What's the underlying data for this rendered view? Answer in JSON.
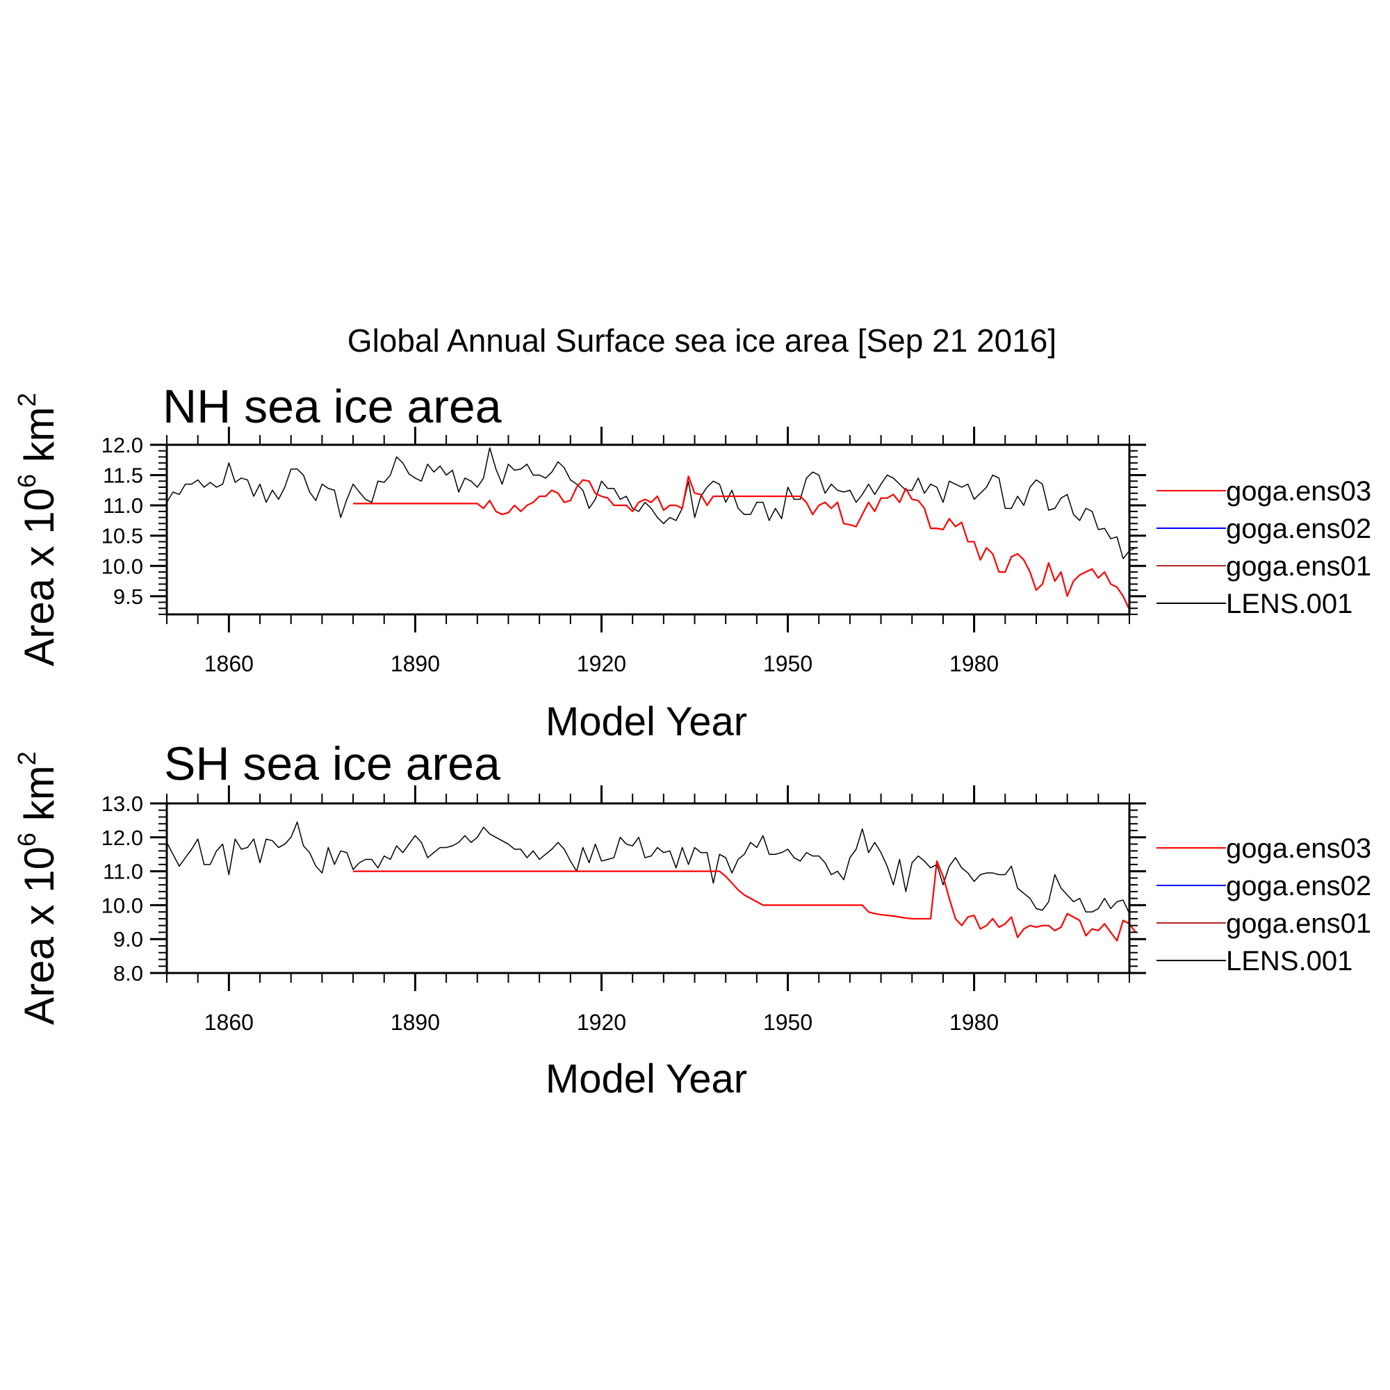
{
  "figure_title": "Global Annual Surface sea ice area [Sep 21 2016]",
  "chart_data": [
    {
      "type": "line",
      "title": "NH sea ice area",
      "xlabel": "Model Year",
      "ylabel_text": "Area x 10",
      "ylabel_exp1": "6",
      "ylabel_unit": " km",
      "ylabel_exp2": "2",
      "xlim": [
        1850,
        2005
      ],
      "ylim": [
        9.2,
        12.0
      ],
      "xticks": [
        1860,
        1890,
        1920,
        1950,
        1980
      ],
      "xtick_labels": [
        "1860",
        "1890",
        "1920",
        "1950",
        "1980"
      ],
      "yticks": [
        9.5,
        10.0,
        10.5,
        11.0,
        11.5,
        12.0
      ],
      "ytick_labels": [
        "9.5",
        "10.0",
        "10.5",
        "11.0",
        "11.5",
        "12.0"
      ],
      "legend_position": "right",
      "series": [
        {
          "name": "goga.ens03",
          "color": "#ff0000",
          "x": [
            1880,
            2005
          ],
          "values": [
            11.03,
            9.3
          ],
          "legend_only": true
        },
        {
          "name": "goga.ens02",
          "color": "#0000ff",
          "x": [],
          "values": [],
          "legend_only": true
        },
        {
          "name": "goga.ens01",
          "color": "#b22222",
          "x": [],
          "values": [],
          "legend_only": true
        },
        {
          "name": "LENS.001",
          "color": "#000000",
          "x": [],
          "values": [],
          "legend_only": true
        }
      ],
      "lines": [
        {
          "name": "LENS.001",
          "color": "#000000",
          "width": 1.5,
          "x0": 1850,
          "values": [
            11.05,
            11.22,
            11.18,
            11.35,
            11.35,
            11.42,
            11.3,
            11.38,
            11.3,
            11.35,
            11.7,
            11.38,
            11.45,
            11.42,
            11.15,
            11.35,
            11.05,
            11.25,
            11.1,
            11.3,
            11.6,
            11.6,
            11.5,
            11.22,
            11.08,
            11.35,
            11.28,
            11.25,
            10.8,
            11.1,
            11.35,
            11.22,
            11.1,
            11.05,
            11.4,
            11.38,
            11.5,
            11.8,
            11.7,
            11.52,
            11.45,
            11.4,
            11.68,
            11.55,
            11.65,
            11.5,
            11.58,
            11.22,
            11.45,
            11.4,
            11.3,
            11.45,
            11.95,
            11.6,
            11.35,
            11.68,
            11.58,
            11.6,
            11.68,
            11.5,
            11.5,
            11.45,
            11.55,
            11.72,
            11.62,
            11.42,
            11.35,
            11.25,
            10.95,
            11.1,
            11.4,
            11.28,
            11.28,
            11.1,
            11.15,
            10.95,
            10.9,
            11.05,
            10.95,
            10.8,
            10.7,
            10.8,
            10.75,
            10.95,
            11.4,
            10.8,
            11.15,
            11.3,
            11.4,
            11.35,
            11.05,
            11.25,
            10.95,
            10.85,
            10.85,
            11.05,
            11.05,
            10.75,
            10.95,
            10.78,
            11.3,
            11.1,
            11.1,
            11.45,
            11.55,
            11.5,
            11.2,
            11.35,
            11.25,
            11.22,
            11.25,
            11.05,
            11.18,
            11.35,
            11.18,
            11.35,
            11.5,
            11.45,
            11.35,
            11.25,
            11.25,
            11.45,
            11.2,
            11.35,
            11.3,
            11.05,
            11.4,
            11.35,
            11.3,
            11.35,
            11.1,
            11.2,
            11.3,
            11.5,
            11.45,
            10.95,
            10.95,
            11.15,
            11.0,
            11.3,
            11.42,
            11.35,
            10.92,
            10.95,
            11.12,
            11.18,
            10.85,
            10.75,
            10.95,
            10.9,
            10.6,
            10.62,
            10.45,
            10.48,
            10.12,
            10.25,
            10.3
          ]
        },
        {
          "name": "goga.ens03",
          "color": "#ff0000",
          "width": 2.2,
          "x0": 1880,
          "values": [
            11.03,
            11.03,
            11.03,
            11.03,
            11.03,
            11.03,
            11.03,
            11.03,
            11.03,
            11.03,
            11.03,
            11.03,
            11.03,
            11.03,
            11.03,
            11.03,
            11.03,
            11.03,
            11.03,
            11.03,
            11.03,
            10.95,
            11.08,
            10.9,
            10.85,
            10.88,
            11.0,
            10.9,
            11.0,
            11.05,
            11.15,
            11.15,
            11.25,
            11.2,
            11.05,
            11.08,
            11.3,
            11.42,
            11.4,
            11.2,
            11.15,
            11.12,
            11.0,
            11.0,
            11.0,
            10.9,
            11.05,
            11.1,
            11.05,
            11.15,
            10.92,
            11.0,
            11.0,
            10.95,
            11.48,
            11.2,
            11.18,
            11.0,
            11.15,
            11.15,
            11.15,
            11.15,
            11.15,
            11.15,
            11.15,
            11.15,
            11.15,
            11.15,
            11.15,
            11.15,
            11.15,
            11.15,
            11.15,
            11.05,
            10.85,
            11.0,
            11.05,
            10.95,
            11.05,
            10.7,
            10.68,
            10.65,
            10.85,
            11.05,
            10.9,
            11.12,
            11.12,
            11.18,
            11.05,
            11.28,
            11.1,
            11.08,
            10.95,
            10.62,
            10.62,
            10.6,
            10.78,
            10.65,
            10.72,
            10.4,
            10.4,
            10.1,
            10.3,
            10.2,
            9.9,
            9.9,
            10.15,
            10.2,
            10.1,
            9.9,
            9.6,
            9.7,
            10.05,
            9.75,
            9.9,
            9.5,
            9.75,
            9.85,
            9.9,
            9.95,
            9.8,
            9.9,
            9.7,
            9.65,
            9.5,
            9.28
          ]
        }
      ]
    },
    {
      "type": "line",
      "title": "SH sea ice area",
      "xlabel": "Model Year",
      "ylabel_text": "Area x 10",
      "ylabel_exp1": "6",
      "ylabel_unit": " km",
      "ylabel_exp2": "2",
      "xlim": [
        1850,
        2005
      ],
      "ylim": [
        8.0,
        13.0
      ],
      "xticks": [
        1860,
        1890,
        1920,
        1950,
        1980
      ],
      "xtick_labels": [
        "1860",
        "1890",
        "1920",
        "1950",
        "1980"
      ],
      "yticks": [
        8.0,
        9.0,
        10.0,
        11.0,
        12.0,
        13.0
      ],
      "ytick_labels": [
        "8.0",
        "9.0",
        "10.0",
        "11.0",
        "12.0",
        "13.0"
      ],
      "legend_position": "right",
      "series": [
        {
          "name": "goga.ens03",
          "color": "#ff0000",
          "x": [
            1880,
            2005
          ],
          "values": [
            11.0,
            9.2
          ],
          "legend_only": true
        },
        {
          "name": "goga.ens02",
          "color": "#0000ff",
          "x": [],
          "values": [],
          "legend_only": true
        },
        {
          "name": "goga.ens01",
          "color": "#b22222",
          "x": [],
          "values": [],
          "legend_only": true
        },
        {
          "name": "LENS.001",
          "color": "#000000",
          "x": [],
          "values": [],
          "legend_only": true
        }
      ],
      "lines": [
        {
          "name": "LENS.001",
          "color": "#000000",
          "width": 1.5,
          "x0": 1850,
          "values": [
            11.85,
            11.5,
            11.15,
            11.4,
            11.65,
            11.95,
            11.2,
            11.2,
            11.6,
            11.8,
            10.9,
            11.95,
            11.65,
            11.7,
            11.95,
            11.25,
            11.95,
            11.9,
            11.7,
            11.8,
            12.0,
            12.45,
            11.75,
            11.55,
            11.15,
            10.95,
            11.7,
            11.2,
            11.6,
            11.55,
            11.05,
            11.25,
            11.35,
            11.35,
            11.1,
            11.45,
            11.35,
            11.75,
            11.55,
            11.8,
            12.05,
            11.85,
            11.4,
            11.55,
            11.7,
            11.7,
            11.75,
            11.85,
            12.05,
            11.85,
            12.0,
            12.3,
            12.1,
            12.0,
            11.9,
            11.8,
            11.65,
            11.65,
            11.4,
            11.6,
            11.35,
            11.5,
            11.65,
            11.85,
            11.65,
            11.3,
            11.0,
            11.7,
            11.25,
            11.8,
            11.3,
            11.35,
            11.4,
            12.0,
            11.8,
            11.75,
            12.0,
            11.4,
            11.45,
            11.7,
            11.55,
            11.6,
            11.1,
            11.7,
            11.2,
            11.7,
            11.55,
            11.55,
            10.65,
            11.5,
            11.4,
            10.95,
            11.35,
            11.5,
            11.85,
            11.7,
            12.05,
            11.5,
            11.5,
            11.55,
            11.65,
            11.4,
            11.3,
            11.55,
            11.45,
            11.45,
            11.25,
            10.9,
            11.0,
            10.75,
            11.4,
            11.65,
            12.25,
            11.55,
            11.85,
            11.55,
            11.15,
            10.6,
            11.35,
            10.4,
            11.25,
            11.45,
            11.3,
            11.1,
            11.2,
            10.6,
            11.15,
            11.4,
            11.1,
            10.95,
            10.7,
            10.9,
            10.95,
            10.95,
            10.9,
            10.9,
            11.15,
            10.5,
            10.35,
            10.2,
            9.9,
            9.85,
            10.1,
            10.9,
            10.5,
            10.3,
            10.1,
            10.2,
            9.8,
            9.8,
            9.9,
            10.2,
            9.9,
            10.1,
            10.15,
            9.75
          ]
        },
        {
          "name": "goga.ens03",
          "color": "#ff0000",
          "width": 2.2,
          "x0": 1880,
          "values": [
            11.0,
            11.0,
            11.0,
            11.0,
            11.0,
            11.0,
            11.0,
            11.0,
            11.0,
            11.0,
            11.0,
            11.0,
            11.0,
            11.0,
            11.0,
            11.0,
            11.0,
            11.0,
            11.0,
            11.0,
            11.0,
            11.0,
            11.0,
            11.0,
            11.0,
            11.0,
            11.0,
            11.0,
            11.0,
            11.0,
            11.0,
            11.0,
            11.0,
            11.0,
            11.0,
            11.0,
            11.0,
            11.0,
            11.0,
            11.0,
            11.0,
            11.0,
            11.0,
            11.0,
            11.0,
            11.0,
            11.0,
            11.0,
            11.0,
            11.0,
            11.0,
            11.0,
            11.0,
            11.0,
            11.0,
            11.0,
            11.0,
            11.0,
            11.0,
            11.0,
            10.85,
            10.65,
            10.45,
            10.3,
            10.2,
            10.1,
            10.0,
            10.0,
            10.0,
            10.0,
            10.0,
            10.0,
            10.0,
            10.0,
            10.0,
            10.0,
            10.0,
            10.0,
            10.0,
            10.0,
            10.0,
            10.0,
            10.0,
            9.8,
            9.75,
            9.72,
            9.7,
            9.68,
            9.65,
            9.62,
            9.6,
            9.6,
            9.6,
            9.6,
            11.3,
            10.85,
            10.2,
            9.6,
            9.4,
            9.65,
            9.7,
            9.3,
            9.4,
            9.6,
            9.35,
            9.45,
            9.65,
            9.05,
            9.3,
            9.4,
            9.35,
            9.4,
            9.4,
            9.25,
            9.35,
            9.75,
            9.65,
            9.55,
            9.1,
            9.3,
            9.25,
            9.45,
            9.2,
            8.95,
            9.55,
            9.45,
            9.2
          ]
        }
      ]
    }
  ]
}
